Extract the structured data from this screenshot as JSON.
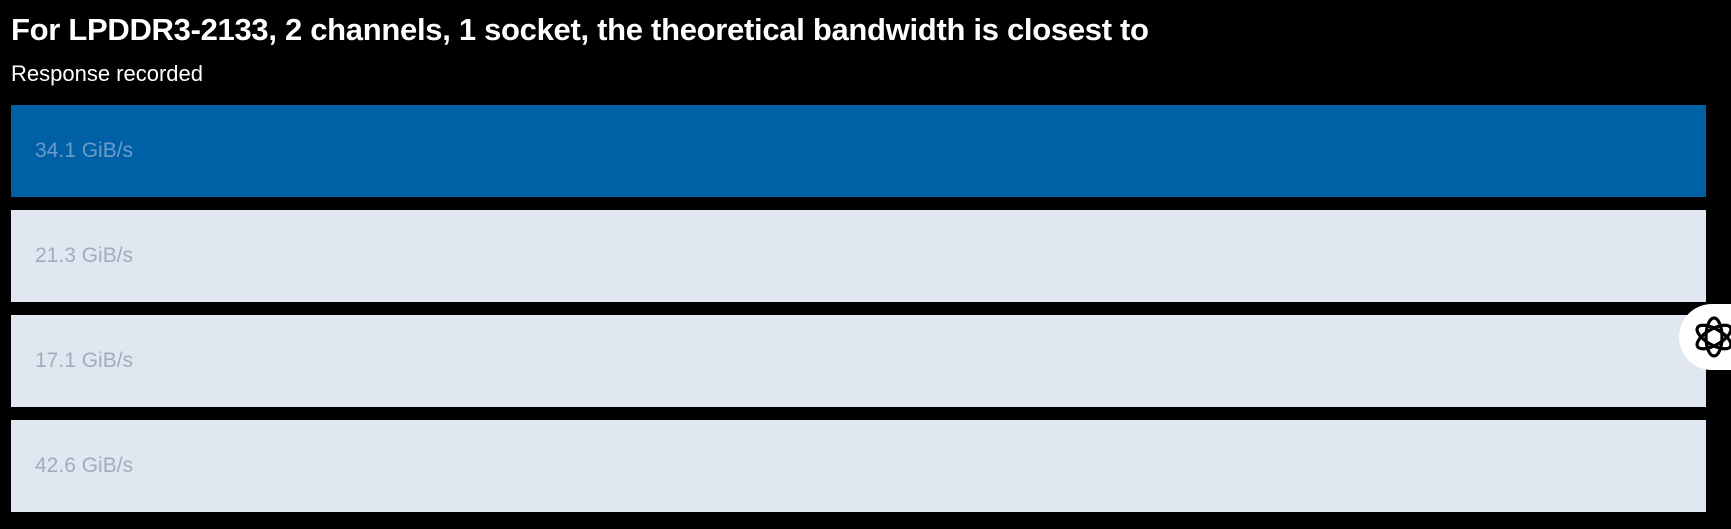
{
  "question": {
    "title": "For LPDDR3-2133, 2 channels, 1 socket, the theoretical bandwidth is closest to",
    "status": "Response recorded"
  },
  "options": [
    {
      "label": "34.1 GiB/s",
      "selected": true
    },
    {
      "label": "21.3 GiB/s",
      "selected": false
    },
    {
      "label": "17.1 GiB/s",
      "selected": false
    },
    {
      "label": "42.6 GiB/s",
      "selected": false
    }
  ],
  "colors": {
    "background": "#000000",
    "selected_option": "#0060a6",
    "unselected_option": "#e1e7f0",
    "option_text": "#a3acb9"
  },
  "floating_button": {
    "icon": "openai-knot-icon"
  }
}
